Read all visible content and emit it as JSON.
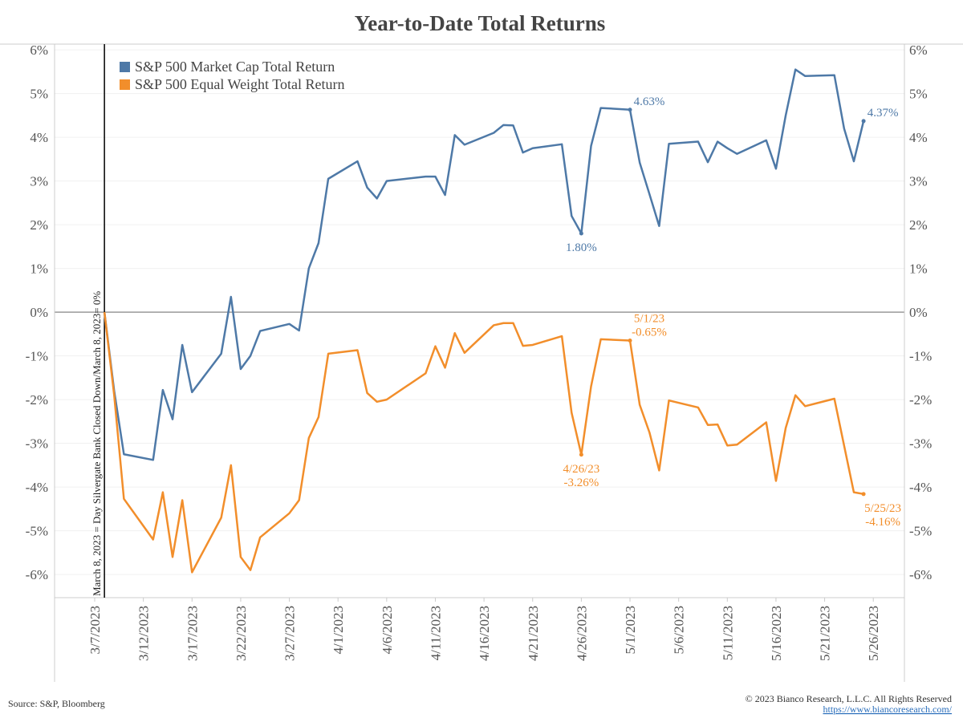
{
  "chart_data": {
    "type": "line",
    "title": "Year-to-Date Total Returns",
    "x": [
      "2023-03-08",
      "2023-03-09",
      "2023-03-10",
      "2023-03-13",
      "2023-03-14",
      "2023-03-15",
      "2023-03-16",
      "2023-03-17",
      "2023-03-20",
      "2023-03-21",
      "2023-03-22",
      "2023-03-23",
      "2023-03-24",
      "2023-03-27",
      "2023-03-28",
      "2023-03-29",
      "2023-03-30",
      "2023-03-31",
      "2023-04-03",
      "2023-04-04",
      "2023-04-05",
      "2023-04-06",
      "2023-04-10",
      "2023-04-11",
      "2023-04-12",
      "2023-04-13",
      "2023-04-14",
      "2023-04-17",
      "2023-04-18",
      "2023-04-19",
      "2023-04-20",
      "2023-04-21",
      "2023-04-24",
      "2023-04-25",
      "2023-04-26",
      "2023-04-27",
      "2023-04-28",
      "2023-05-01",
      "2023-05-02",
      "2023-05-03",
      "2023-05-04",
      "2023-05-05",
      "2023-05-08",
      "2023-05-09",
      "2023-05-10",
      "2023-05-11",
      "2023-05-12",
      "2023-05-15",
      "2023-05-16",
      "2023-05-17",
      "2023-05-18",
      "2023-05-19",
      "2023-05-22",
      "2023-05-23",
      "2023-05-24",
      "2023-05-25"
    ],
    "series": [
      {
        "name": "S&P 500 Market Cap Total Return",
        "color": "#4e79a7",
        "values": [
          0,
          -1.8,
          -3.25,
          -3.38,
          -1.78,
          -2.45,
          -0.75,
          -1.83,
          -0.95,
          0.35,
          -1.3,
          -1.0,
          -0.43,
          -0.27,
          -0.42,
          1.0,
          1.58,
          3.05,
          3.45,
          2.85,
          2.6,
          3.0,
          3.1,
          3.1,
          2.68,
          4.05,
          3.83,
          4.1,
          4.28,
          4.27,
          3.65,
          3.75,
          3.84,
          2.2,
          1.8,
          3.8,
          4.67,
          4.63,
          3.42,
          2.7,
          1.97,
          3.85,
          3.9,
          3.43,
          3.9,
          3.75,
          3.62,
          3.93,
          3.28,
          4.5,
          5.55,
          5.4,
          5.42,
          4.2,
          3.45,
          4.37
        ],
        "value_labels": [
          null,
          null,
          null,
          null,
          null,
          null,
          null,
          null,
          null,
          null,
          null,
          null,
          null,
          null,
          null,
          null,
          null,
          null,
          null,
          null,
          null,
          null,
          null,
          null,
          null,
          null,
          null,
          null,
          null,
          null,
          null,
          null,
          null,
          null,
          "1.80%",
          null,
          null,
          "4.63%",
          null,
          null,
          null,
          null,
          null,
          null,
          null,
          null,
          null,
          null,
          null,
          null,
          null,
          null,
          null,
          null,
          null,
          "4.37%"
        ]
      },
      {
        "name": "S&P 500 Equal Weight Total Return",
        "color": "#f28e2b",
        "values": [
          0,
          -1.9,
          -4.27,
          -5.2,
          -4.12,
          -5.6,
          -4.3,
          -5.95,
          -4.7,
          -3.5,
          -5.6,
          -5.9,
          -5.15,
          -4.6,
          -4.3,
          -2.88,
          -2.4,
          -0.95,
          -0.87,
          -1.85,
          -2.05,
          -2.0,
          -1.4,
          -0.78,
          -1.27,
          -0.48,
          -0.93,
          -0.3,
          -0.25,
          -0.25,
          -0.77,
          -0.75,
          -0.55,
          -2.3,
          -3.26,
          -1.7,
          -0.62,
          -0.65,
          -2.12,
          -2.75,
          -3.62,
          -2.02,
          -2.18,
          -2.58,
          -2.57,
          -3.05,
          -3.03,
          -2.52,
          -3.86,
          -2.65,
          -1.9,
          -2.15,
          -1.98,
          -3.05,
          -4.12,
          -4.16
        ],
        "value_labels": [
          null,
          null,
          null,
          null,
          null,
          null,
          null,
          null,
          null,
          null,
          null,
          null,
          null,
          null,
          null,
          null,
          null,
          null,
          null,
          null,
          null,
          null,
          null,
          null,
          null,
          null,
          null,
          null,
          null,
          null,
          null,
          null,
          null,
          null,
          "-3.26%",
          null,
          null,
          "-0.65%",
          null,
          null,
          null,
          null,
          null,
          null,
          null,
          null,
          null,
          null,
          null,
          null,
          null,
          null,
          null,
          null,
          null,
          "-4.16%"
        ],
        "date_labels": [
          null,
          null,
          null,
          null,
          null,
          null,
          null,
          null,
          null,
          null,
          null,
          null,
          null,
          null,
          null,
          null,
          null,
          null,
          null,
          null,
          null,
          null,
          null,
          null,
          null,
          null,
          null,
          null,
          null,
          null,
          null,
          null,
          null,
          null,
          "4/26/23",
          null,
          null,
          "5/1/23",
          null,
          null,
          null,
          null,
          null,
          null,
          null,
          null,
          null,
          null,
          null,
          null,
          null,
          null,
          null,
          null,
          null,
          "5/25/23"
        ]
      }
    ],
    "xlim": [
      "2023-03-03",
      "2023-05-29"
    ],
    "xticks": [
      {
        "value": "2023-03-07",
        "label": "3/7/2023"
      },
      {
        "value": "2023-03-12",
        "label": "3/12/2023"
      },
      {
        "value": "2023-03-17",
        "label": "3/17/2023"
      },
      {
        "value": "2023-03-22",
        "label": "3/22/2023"
      },
      {
        "value": "2023-03-27",
        "label": "3/27/2023"
      },
      {
        "value": "2023-04-01",
        "label": "4/1/2023"
      },
      {
        "value": "2023-04-06",
        "label": "4/6/2023"
      },
      {
        "value": "2023-04-11",
        "label": "4/11/2023"
      },
      {
        "value": "2023-04-16",
        "label": "4/16/2023"
      },
      {
        "value": "2023-04-21",
        "label": "4/21/2023"
      },
      {
        "value": "2023-04-26",
        "label": "4/26/2023"
      },
      {
        "value": "2023-05-01",
        "label": "5/1/2023"
      },
      {
        "value": "2023-05-06",
        "label": "5/6/2023"
      },
      {
        "value": "2023-05-11",
        "label": "5/11/2023"
      },
      {
        "value": "2023-05-16",
        "label": "5/16/2023"
      },
      {
        "value": "2023-05-21",
        "label": "5/21/2023"
      },
      {
        "value": "2023-05-26",
        "label": "5/26/2023"
      }
    ],
    "ylim": [
      -6.53,
      6.13
    ],
    "yticks": [
      {
        "value": -6,
        "label": "-6%"
      },
      {
        "value": -5,
        "label": "-5%"
      },
      {
        "value": -4,
        "label": "-4%"
      },
      {
        "value": -3,
        "label": "-3%"
      },
      {
        "value": -2,
        "label": "-2%"
      },
      {
        "value": -1,
        "label": "-1%"
      },
      {
        "value": 0,
        "label": "0%"
      },
      {
        "value": 1,
        "label": "1%"
      },
      {
        "value": 2,
        "label": "2%"
      },
      {
        "value": 3,
        "label": "3%"
      },
      {
        "value": 4,
        "label": "4%"
      },
      {
        "value": 5,
        "label": "5%"
      },
      {
        "value": 6,
        "label": "6%"
      }
    ],
    "grid": true,
    "legend": "upper left",
    "vline": {
      "x": "2023-03-08",
      "label": "March 8, 2023 = Day Silvergate Bank Closed Down/March 8, 2023= 0%"
    },
    "source": "Source: S&P, Bloomberg",
    "copyright": "© 2023 Bianco Research, L.L.C. All Rights Reserved",
    "url": "https://www.biancoresearch.com/"
  }
}
